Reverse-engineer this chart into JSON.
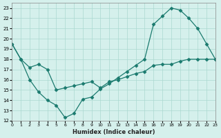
{
  "xlabel": "Humidex (Indice chaleur)",
  "line1_x": [
    0,
    1,
    2,
    3,
    4,
    5,
    6,
    7,
    8,
    9,
    10,
    11,
    12,
    13,
    14,
    15,
    16,
    17,
    18,
    19,
    20,
    21,
    22,
    23
  ],
  "line1_y": [
    19.5,
    18.0,
    16.0,
    14.8,
    14.0,
    13.5,
    12.3,
    12.7,
    14.1,
    14.3,
    15.1,
    15.6,
    16.2,
    16.8,
    17.4,
    18.0,
    21.4,
    22.2,
    23.0,
    22.8,
    22.0,
    21.0,
    19.5,
    18.0
  ],
  "line2_x": [
    0,
    1,
    2,
    3,
    4,
    5,
    6,
    7,
    8,
    9,
    10,
    11,
    12,
    13,
    14,
    15,
    16,
    17,
    18,
    19,
    20,
    21,
    22,
    23
  ],
  "line2_y": [
    19.5,
    18.0,
    17.2,
    17.5,
    17.0,
    15.0,
    15.2,
    15.4,
    15.6,
    15.8,
    15.2,
    15.8,
    16.0,
    16.3,
    16.6,
    16.8,
    17.4,
    17.5,
    17.5,
    17.8,
    18.0,
    18.0,
    18.0,
    18.0
  ],
  "line_color": "#1a7a6e",
  "marker": "D",
  "marker_size": 2.5,
  "bg_color": "#d5f0ec",
  "grid_color": "#aad8d0",
  "xlim": [
    0,
    23
  ],
  "ylim": [
    12,
    23.5
  ],
  "xticks": [
    0,
    1,
    2,
    3,
    4,
    5,
    6,
    7,
    8,
    9,
    10,
    11,
    12,
    13,
    14,
    15,
    16,
    17,
    18,
    19,
    20,
    21,
    22,
    23
  ],
  "yticks": [
    12,
    13,
    14,
    15,
    16,
    17,
    18,
    19,
    20,
    21,
    22,
    23
  ]
}
